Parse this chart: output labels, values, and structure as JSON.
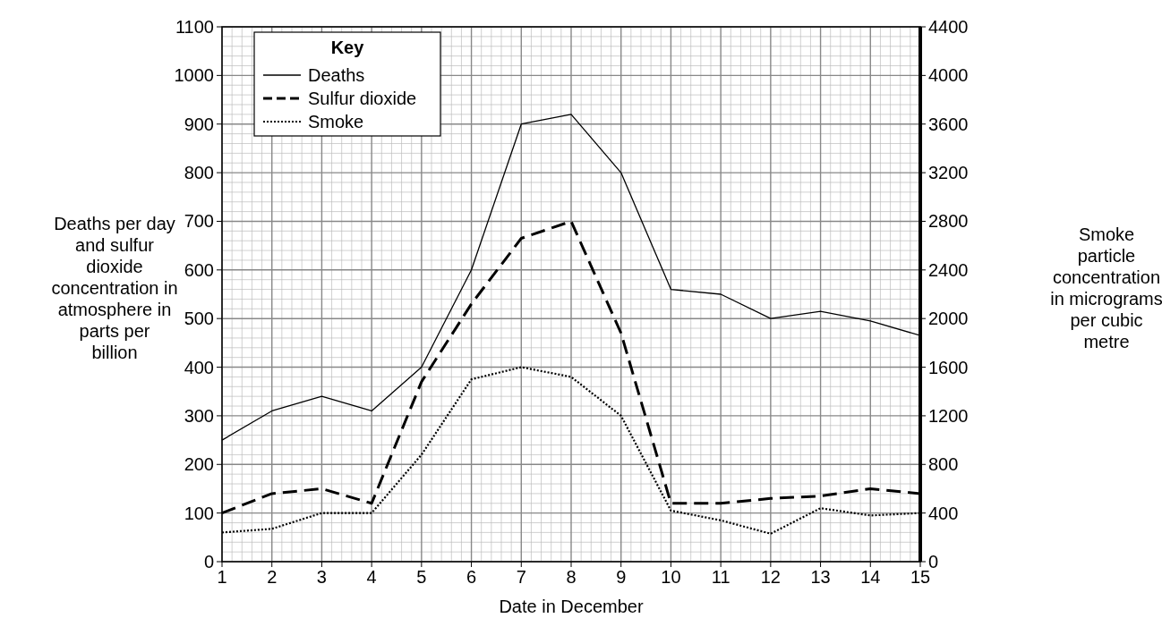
{
  "chart_data": {
    "type": "line",
    "xlabel": "Date in December",
    "ylabel": "Deaths per day and sulfur dioxide concentration in atmosphere in parts per billion",
    "y2label": "Smoke particle concentration in micrograms per cubic metre",
    "legend_title": "Key",
    "legend": "top left",
    "grid": true,
    "x": [
      1,
      2,
      3,
      4,
      5,
      6,
      7,
      8,
      9,
      10,
      11,
      12,
      13,
      14,
      15
    ],
    "xlim": [
      1,
      15
    ],
    "xticks": [
      1,
      2,
      3,
      4,
      5,
      6,
      7,
      8,
      9,
      10,
      11,
      12,
      13,
      14,
      15
    ],
    "ylim": [
      0,
      1100
    ],
    "yticks": [
      0,
      100,
      200,
      300,
      400,
      500,
      600,
      700,
      800,
      900,
      1000,
      1100
    ],
    "y2lim": [
      0,
      4400
    ],
    "y2ticks": [
      0,
      400,
      800,
      1200,
      1600,
      2000,
      2400,
      2800,
      3200,
      3600,
      4000,
      4400
    ],
    "series": [
      {
        "name": "Deaths",
        "color": "#000000",
        "line_style": "solid",
        "values": [
          250,
          310,
          340,
          310,
          400,
          600,
          900,
          920,
          800,
          560,
          550,
          500,
          515,
          495,
          465
        ]
      },
      {
        "name": "Sulfur dioxide",
        "color": "#000000",
        "line_style": "dashed",
        "values": [
          100,
          140,
          150,
          120,
          370,
          530,
          665,
          700,
          470,
          120,
          120,
          130,
          135,
          150,
          140
        ]
      },
      {
        "name": "Smoke",
        "color": "#000000",
        "line_style": "dotted",
        "axis": "y2",
        "values": [
          240,
          270,
          400,
          400,
          880,
          1500,
          1600,
          1520,
          1200,
          420,
          340,
          230,
          440,
          380,
          400
        ]
      }
    ]
  }
}
